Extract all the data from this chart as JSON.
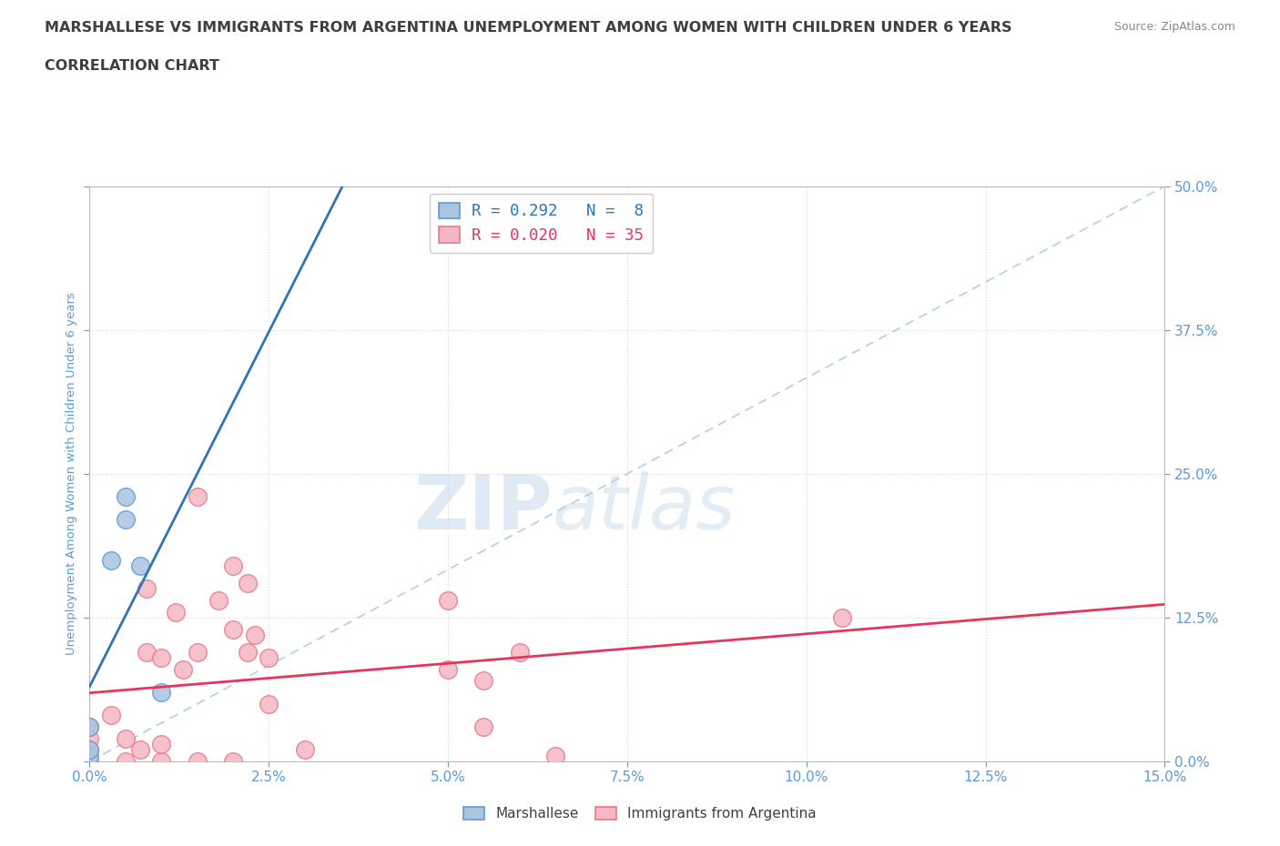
{
  "title_line1": "MARSHALLESE VS IMMIGRANTS FROM ARGENTINA UNEMPLOYMENT AMONG WOMEN WITH CHILDREN UNDER 6 YEARS",
  "title_line2": "CORRELATION CHART",
  "source": "Source: ZipAtlas.com",
  "ylabel": "Unemployment Among Women with Children Under 6 years",
  "xlim": [
    0.0,
    0.15
  ],
  "ylim": [
    0.0,
    0.5
  ],
  "ytick_vals": [
    0.0,
    0.125,
    0.25,
    0.375,
    0.5
  ],
  "xtick_vals": [
    0.0,
    0.025,
    0.05,
    0.075,
    0.1,
    0.125,
    0.15
  ],
  "watermark_zip": "ZIP",
  "watermark_atlas": "atlas",
  "marshallese_x": [
    0.0,
    0.0,
    0.0,
    0.003,
    0.005,
    0.005,
    0.007,
    0.01
  ],
  "marshallese_y": [
    0.005,
    0.01,
    0.03,
    0.175,
    0.21,
    0.23,
    0.17,
    0.06
  ],
  "argentina_x": [
    0.0,
    0.0,
    0.0,
    0.0,
    0.003,
    0.005,
    0.005,
    0.007,
    0.008,
    0.008,
    0.01,
    0.01,
    0.01,
    0.012,
    0.013,
    0.015,
    0.015,
    0.015,
    0.018,
    0.02,
    0.02,
    0.022,
    0.022,
    0.023,
    0.025,
    0.025,
    0.03,
    0.05,
    0.05,
    0.055,
    0.055,
    0.06,
    0.065,
    0.105,
    0.02
  ],
  "argentina_y": [
    0.0,
    0.01,
    0.02,
    0.03,
    0.04,
    0.0,
    0.02,
    0.01,
    0.095,
    0.15,
    0.0,
    0.015,
    0.09,
    0.13,
    0.08,
    0.0,
    0.095,
    0.23,
    0.14,
    0.0,
    0.115,
    0.095,
    0.155,
    0.11,
    0.09,
    0.05,
    0.01,
    0.08,
    0.14,
    0.03,
    0.07,
    0.095,
    0.005,
    0.125,
    0.17
  ],
  "marshallese_color": "#aac4e0",
  "marshallese_edge": "#5b9bd5",
  "argentina_color": "#f4b8c4",
  "argentina_edge": "#e8788a",
  "trend_marshallese_color": "#2e75b6",
  "trend_argentina_color": "#e8345a",
  "diagonal_color": "#9dc3e6",
  "legend_R_marshallese": "R = 0.292",
  "legend_N_marshallese": "N =  8",
  "legend_R_argentina": "R = 0.020",
  "legend_N_argentina": "N = 35",
  "title_color": "#3f3f3f",
  "tick_color": "#5b9bd5",
  "grid_color": "#d8d8d8",
  "background_color": "#ffffff"
}
